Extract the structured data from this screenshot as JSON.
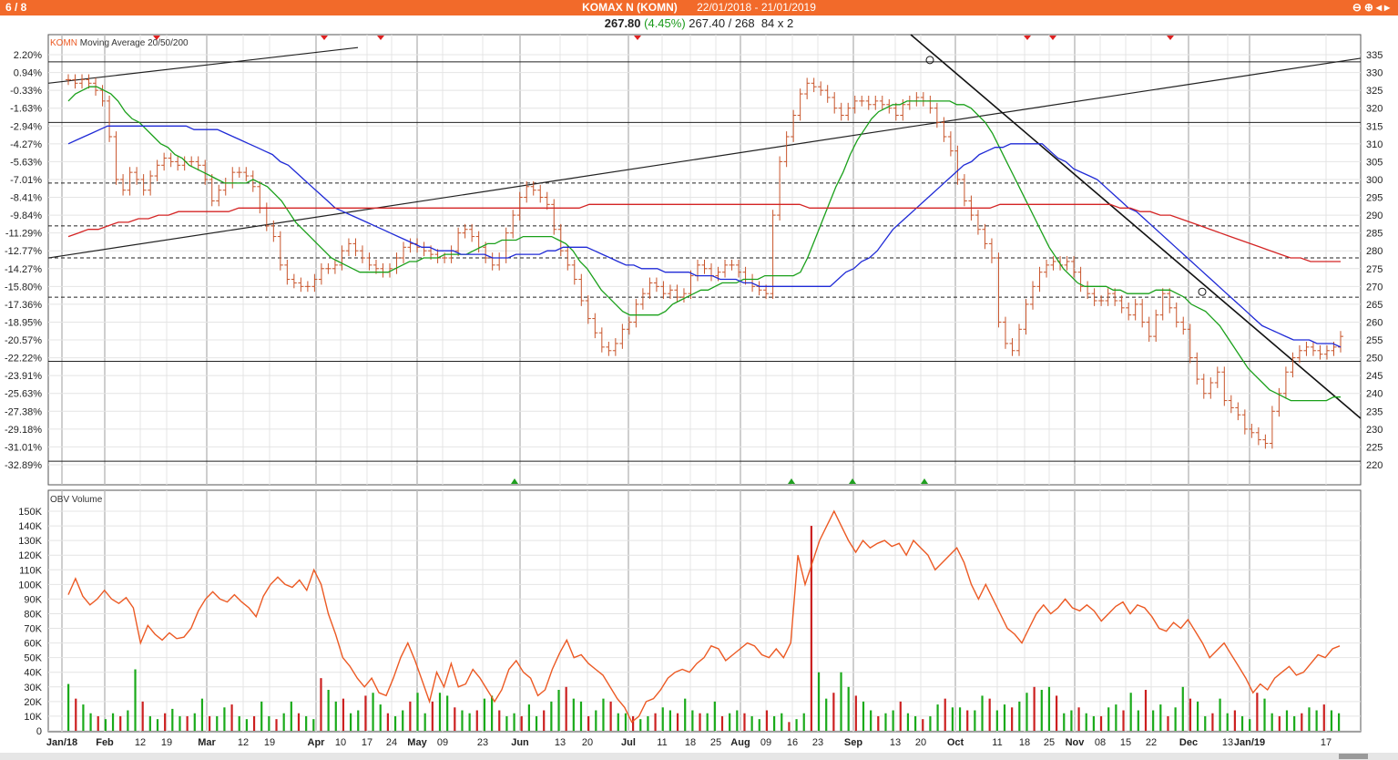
{
  "header": {
    "page_indicator": "6 / 8",
    "title": "KOMAX N (KOMN)",
    "date_range": "22/01/2018 - 21/01/2019",
    "window_buttons": "⊖⊕◂▸",
    "last_price": "267.80",
    "change_pct": "(4.45%)",
    "bid_ask": "267.40 / 268",
    "size": "84 x 2"
  },
  "colors": {
    "bars": "#c8542a",
    "ma20": "#1aa01a",
    "ma50": "#1f2ad6",
    "ma200": "#d42424",
    "obv": "#ec5a24",
    "vol_up": "#1aaa1a",
    "vol_down": "#cc2020",
    "signal_down": "#e02020",
    "signal_up": "#20a020"
  },
  "chart_data": [
    {
      "type": "line",
      "title": "",
      "legend": {
        "symbol": "KOMN",
        "text": "Moving Average 20/50/200",
        "placement": "top-left"
      },
      "y_right_ticks": [
        220,
        225,
        230,
        235,
        240,
        245,
        250,
        255,
        260,
        265,
        270,
        275,
        280,
        285,
        290,
        295,
        300,
        305,
        310,
        315,
        320,
        325,
        330,
        335
      ],
      "y_left_ticks": [
        "2.20%",
        "0.94%",
        "-0.33%",
        "-1.63%",
        "-2.94%",
        "-4.27%",
        "-5.63%",
        "-7.01%",
        "-8.41%",
        "-9.84%",
        "-11.29%",
        "-12.77%",
        "-14.27%",
        "-15.80%",
        "-17.36%",
        "-18.95%",
        "-20.57%",
        "-22.22%",
        "-23.91%",
        "-25.63%",
        "-27.38%",
        "-29.18%",
        "-31.01%",
        "-32.89%"
      ],
      "ylim": [
        217.5,
        337
      ],
      "grid": true,
      "price_series": [
        {
          "name": "KOMN",
          "values": [
            328,
            327,
            328,
            327,
            325,
            322,
            312,
            300,
            297,
            302,
            300,
            297,
            301,
            304,
            306,
            305,
            304,
            305,
            305,
            304,
            300,
            294,
            297,
            299,
            302,
            302,
            301,
            298,
            292,
            287,
            284,
            276,
            272,
            271,
            270,
            270,
            272,
            275,
            275,
            276,
            280,
            282,
            280,
            278,
            276,
            275,
            274,
            275,
            278,
            281,
            282,
            281,
            280,
            279,
            278,
            278,
            280,
            285,
            286,
            284,
            281,
            278,
            276,
            278,
            285,
            290,
            295,
            298,
            297,
            295,
            293,
            286,
            280,
            276,
            272,
            266,
            261,
            257,
            253,
            252,
            254,
            258,
            260,
            265,
            268,
            271,
            270,
            268,
            269,
            267,
            268,
            273,
            276,
            275,
            273,
            274,
            276,
            276,
            274,
            272,
            270,
            269,
            268,
            290,
            305,
            312,
            318,
            324,
            327,
            326,
            325,
            323,
            320,
            318,
            320,
            322,
            322,
            321,
            322,
            321,
            320,
            318,
            321,
            322,
            323,
            322,
            320,
            316,
            312,
            308,
            300,
            294,
            290,
            286,
            282,
            278,
            260,
            254,
            252,
            258,
            265,
            270,
            274,
            276,
            277,
            276,
            277,
            274,
            270,
            268,
            266,
            266,
            268,
            266,
            264,
            262,
            265,
            260,
            256,
            262,
            268,
            264,
            260,
            258,
            250,
            244,
            240,
            243,
            246,
            238,
            236,
            234,
            230,
            229,
            227,
            226,
            235,
            240,
            246,
            250,
            252,
            253,
            252,
            251,
            252,
            253,
            256
          ]
        },
        {
          "name": "MA20",
          "values": [
            322,
            324,
            325,
            326,
            326,
            325,
            324,
            322,
            319,
            317,
            316,
            314,
            312,
            310,
            309,
            307,
            306,
            304,
            303,
            302,
            301,
            300,
            299,
            299,
            299,
            299,
            300,
            299,
            298,
            296,
            294,
            291,
            288,
            286,
            284,
            282,
            280,
            278,
            277,
            276,
            275,
            274,
            274,
            274,
            274,
            274,
            275,
            276,
            277,
            277,
            278,
            278,
            278,
            279,
            279,
            279,
            279,
            280,
            281,
            282,
            282,
            283,
            283,
            283,
            284,
            284,
            284,
            284,
            284,
            283,
            282,
            280,
            277,
            275,
            272,
            269,
            267,
            265,
            263,
            262,
            262,
            262,
            262,
            262,
            263,
            265,
            266,
            267,
            268,
            269,
            269,
            270,
            271,
            271,
            271,
            272,
            272,
            272,
            273,
            273,
            273,
            273,
            273,
            274,
            278,
            283,
            288,
            293,
            298,
            302,
            307,
            311,
            314,
            317,
            319,
            320,
            321,
            321,
            322,
            322,
            322,
            322,
            322,
            322,
            322,
            321,
            321,
            320,
            318,
            316,
            313,
            309,
            305,
            301,
            297,
            293,
            289,
            285,
            281,
            278,
            275,
            273,
            271,
            270,
            270,
            270,
            270,
            269,
            269,
            268,
            268,
            268,
            268,
            269,
            269,
            269,
            268,
            267,
            265,
            264,
            263,
            261,
            259,
            256,
            253,
            250,
            247,
            245,
            243,
            241,
            240,
            239,
            238,
            238,
            238,
            238,
            238,
            238,
            239,
            239
          ]
        },
        {
          "name": "MA50",
          "values": [
            310,
            311,
            312,
            313,
            314,
            315,
            315,
            315,
            315,
            315,
            315,
            315,
            315,
            315,
            315,
            315,
            314,
            314,
            314,
            314,
            313,
            312,
            311,
            310,
            309,
            308,
            307,
            305,
            304,
            302,
            300,
            298,
            296,
            294,
            292,
            291,
            290,
            289,
            288,
            287,
            286,
            285,
            284,
            283,
            282,
            281,
            281,
            280,
            280,
            280,
            279,
            279,
            279,
            279,
            278,
            278,
            278,
            279,
            279,
            279,
            279,
            280,
            280,
            281,
            281,
            281,
            281,
            280,
            279,
            278,
            277,
            276,
            276,
            275,
            275,
            275,
            274,
            274,
            274,
            274,
            273,
            273,
            273,
            272,
            272,
            272,
            271,
            271,
            270,
            270,
            270,
            270,
            270,
            270,
            270,
            270,
            270,
            270,
            272,
            274,
            275,
            277,
            278,
            280,
            283,
            286,
            288,
            290,
            292,
            294,
            296,
            298,
            300,
            302,
            304,
            305,
            307,
            308,
            309,
            309,
            310,
            310,
            310,
            310,
            310,
            308,
            306,
            305,
            303,
            302,
            301,
            300,
            298,
            296,
            294,
            292,
            291,
            289,
            287,
            285,
            283,
            281,
            279,
            277,
            275,
            273,
            271,
            269,
            267,
            265,
            263,
            261,
            259,
            258,
            257,
            256,
            255,
            255,
            255,
            254,
            254,
            254,
            253
          ]
        },
        {
          "name": "MA200",
          "values": [
            284,
            285,
            286,
            286,
            287,
            288,
            288,
            289,
            289,
            290,
            290,
            291,
            291,
            291,
            291,
            291,
            291,
            292,
            292,
            292,
            292,
            292,
            292,
            292,
            292,
            292,
            292,
            292,
            292,
            292,
            292,
            292,
            292,
            292,
            292,
            292,
            292,
            292,
            292,
            292,
            292,
            292,
            292,
            292,
            292,
            292,
            292,
            292,
            292,
            292,
            292,
            292,
            293,
            293,
            293,
            293,
            293,
            293,
            293,
            293,
            293,
            293,
            293,
            293,
            293,
            293,
            293,
            293,
            293,
            293,
            293,
            293,
            293,
            293,
            292,
            292,
            292,
            292,
            292,
            292,
            292,
            292,
            292,
            292,
            292,
            292,
            292,
            292,
            292,
            292,
            292,
            292,
            292,
            293,
            293,
            293,
            293,
            293,
            293,
            293,
            293,
            293,
            293,
            293,
            293,
            292,
            292,
            291,
            291,
            290,
            290,
            289,
            288,
            287,
            286,
            285,
            284,
            283,
            282,
            281,
            280,
            279,
            278,
            278,
            277,
            277,
            277,
            277
          ]
        }
      ],
      "markers_top_down_x": [
        "Feb 19",
        "Apr 03",
        "Apr 13",
        "Jul 04",
        "Oct 17",
        "Oct 25",
        "Nov 28"
      ],
      "markers_bottom_up_x": [
        "May 31",
        "Aug 20",
        "Aug 30",
        "Sep 20"
      ]
    },
    {
      "type": "bar",
      "title": "OBV Volume",
      "y_ticks": [
        "0",
        "10K",
        "20K",
        "30K",
        "40K",
        "50K",
        "60K",
        "70K",
        "80K",
        "90K",
        "100K",
        "110K",
        "120K",
        "130K",
        "140K",
        "150K"
      ],
      "ylim": [
        0,
        155
      ],
      "x_ticks": [
        "Jan/18",
        "Feb",
        "12",
        "19",
        "Mar",
        "12",
        "19",
        "Apr",
        "10",
        "17",
        "24",
        "May",
        "09",
        "23",
        "Jun",
        "13",
        "20",
        "Jul",
        "11",
        "18",
        "25",
        "Aug",
        "09",
        "16",
        "23",
        "Sep",
        "13",
        "20",
        "Oct",
        "11",
        "18",
        "25",
        "Nov",
        "08",
        "15",
        "22",
        "Dec",
        "13",
        "Jan/19",
        "17"
      ],
      "obv_values": [
        93,
        104,
        92,
        86,
        90,
        96,
        90,
        87,
        91,
        84,
        60,
        72,
        66,
        62,
        67,
        63,
        64,
        70,
        82,
        90,
        95,
        90,
        88,
        93,
        88,
        84,
        78,
        92,
        100,
        105,
        100,
        98,
        103,
        96,
        110,
        100,
        80,
        66,
        50,
        44,
        36,
        30,
        36,
        26,
        24,
        36,
        50,
        60,
        48,
        34,
        20,
        40,
        30,
        46,
        30,
        32,
        42,
        36,
        28,
        20,
        28,
        42,
        48,
        40,
        36,
        24,
        28,
        42,
        53,
        62,
        50,
        52,
        46,
        42,
        38,
        30,
        22,
        16,
        6,
        10,
        20,
        22,
        28,
        36,
        40,
        42,
        40,
        46,
        50,
        58,
        56,
        48,
        52,
        56,
        60,
        58,
        52,
        50,
        56,
        50,
        60,
        120,
        100,
        115,
        130,
        140,
        150,
        140,
        130,
        122,
        130,
        125,
        128,
        130,
        126,
        128,
        120,
        130,
        125,
        120,
        110,
        115,
        120,
        125,
        115,
        100,
        90,
        100,
        90,
        80,
        70,
        66,
        60,
        70,
        80,
        86,
        80,
        84,
        90,
        84,
        82,
        86,
        82,
        75,
        80,
        85,
        88,
        80,
        86,
        84,
        78,
        70,
        68,
        74,
        70,
        76,
        68,
        60,
        50,
        55,
        60,
        52,
        44,
        36,
        26,
        32,
        28,
        36,
        40,
        44,
        38,
        40,
        46,
        52,
        50,
        56,
        58
      ],
      "volume_values": [
        32,
        22,
        18,
        12,
        10,
        8,
        12,
        10,
        14,
        42,
        20,
        10,
        8,
        12,
        15,
        10,
        10,
        12,
        22,
        10,
        10,
        16,
        18,
        10,
        8,
        10,
        20,
        10,
        8,
        12,
        20,
        12,
        10,
        8,
        36,
        28,
        20,
        22,
        12,
        14,
        24,
        26,
        18,
        12,
        10,
        14,
        20,
        26,
        12,
        20,
        26,
        24,
        16,
        14,
        12,
        14,
        22,
        24,
        14,
        10,
        12,
        10,
        18,
        10,
        14,
        20,
        28,
        30,
        22,
        20,
        10,
        14,
        22,
        20,
        12,
        12,
        10,
        8,
        10,
        12,
        16,
        14,
        12,
        22,
        14,
        12,
        12,
        20,
        10,
        12,
        14,
        12,
        10,
        8,
        14,
        10,
        12,
        6,
        8,
        12,
        140,
        40,
        22,
        26,
        40,
        30,
        24,
        20,
        14,
        10,
        12,
        14,
        20,
        12,
        10,
        8,
        10,
        18,
        22,
        16,
        16,
        14,
        14,
        24,
        22,
        14,
        18,
        16,
        20,
        26,
        30,
        28,
        30,
        24,
        12,
        14,
        16,
        12,
        10,
        10,
        16,
        18,
        14,
        26,
        14,
        28,
        14,
        18,
        10,
        16,
        30,
        22,
        20,
        10,
        12,
        22,
        12,
        14,
        10,
        8,
        26,
        22,
        12,
        10,
        14,
        10,
        12,
        16,
        14,
        18,
        14,
        12
      ]
    }
  ]
}
